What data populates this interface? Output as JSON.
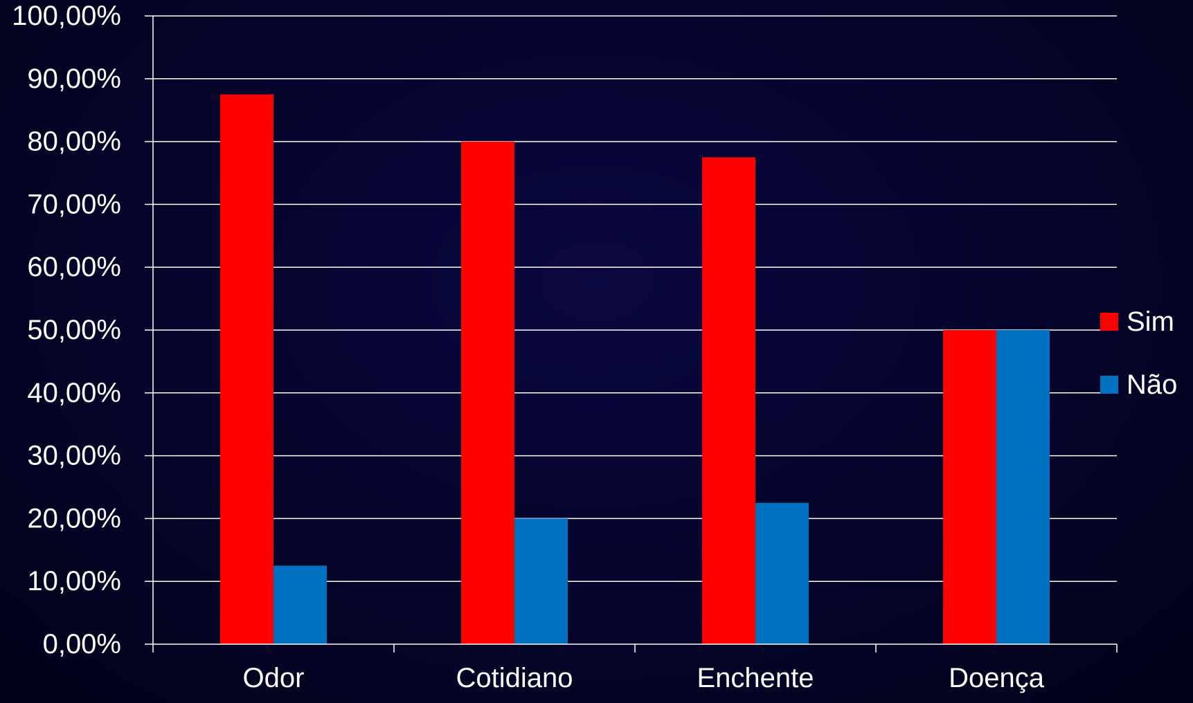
{
  "chart_data": {
    "type": "bar",
    "categories": [
      "Odor",
      "Cotidiano",
      "Enchente",
      "Doença"
    ],
    "series": [
      {
        "name": "Sim",
        "values": [
          87.5,
          80.0,
          77.5,
          50.0
        ],
        "color": "#ff0000"
      },
      {
        "name": "Não",
        "values": [
          12.5,
          20.0,
          22.5,
          50.0
        ],
        "color": "#0070c0"
      }
    ],
    "ylim": [
      0,
      100
    ],
    "y_ticks": [
      0,
      10,
      20,
      30,
      40,
      50,
      60,
      70,
      80,
      90,
      100
    ],
    "y_tick_labels": [
      "0,00%",
      "10,00%",
      "20,00%",
      "30,00%",
      "40,00%",
      "50,00%",
      "60,00%",
      "70,00%",
      "80,00%",
      "90,00%",
      "100,00%"
    ],
    "grid": true,
    "legend_position": "right",
    "title": "",
    "xlabel": "",
    "ylabel": ""
  },
  "colors": {
    "background": "#04031f",
    "grid": "#ffffff",
    "text": "#ffffff"
  }
}
